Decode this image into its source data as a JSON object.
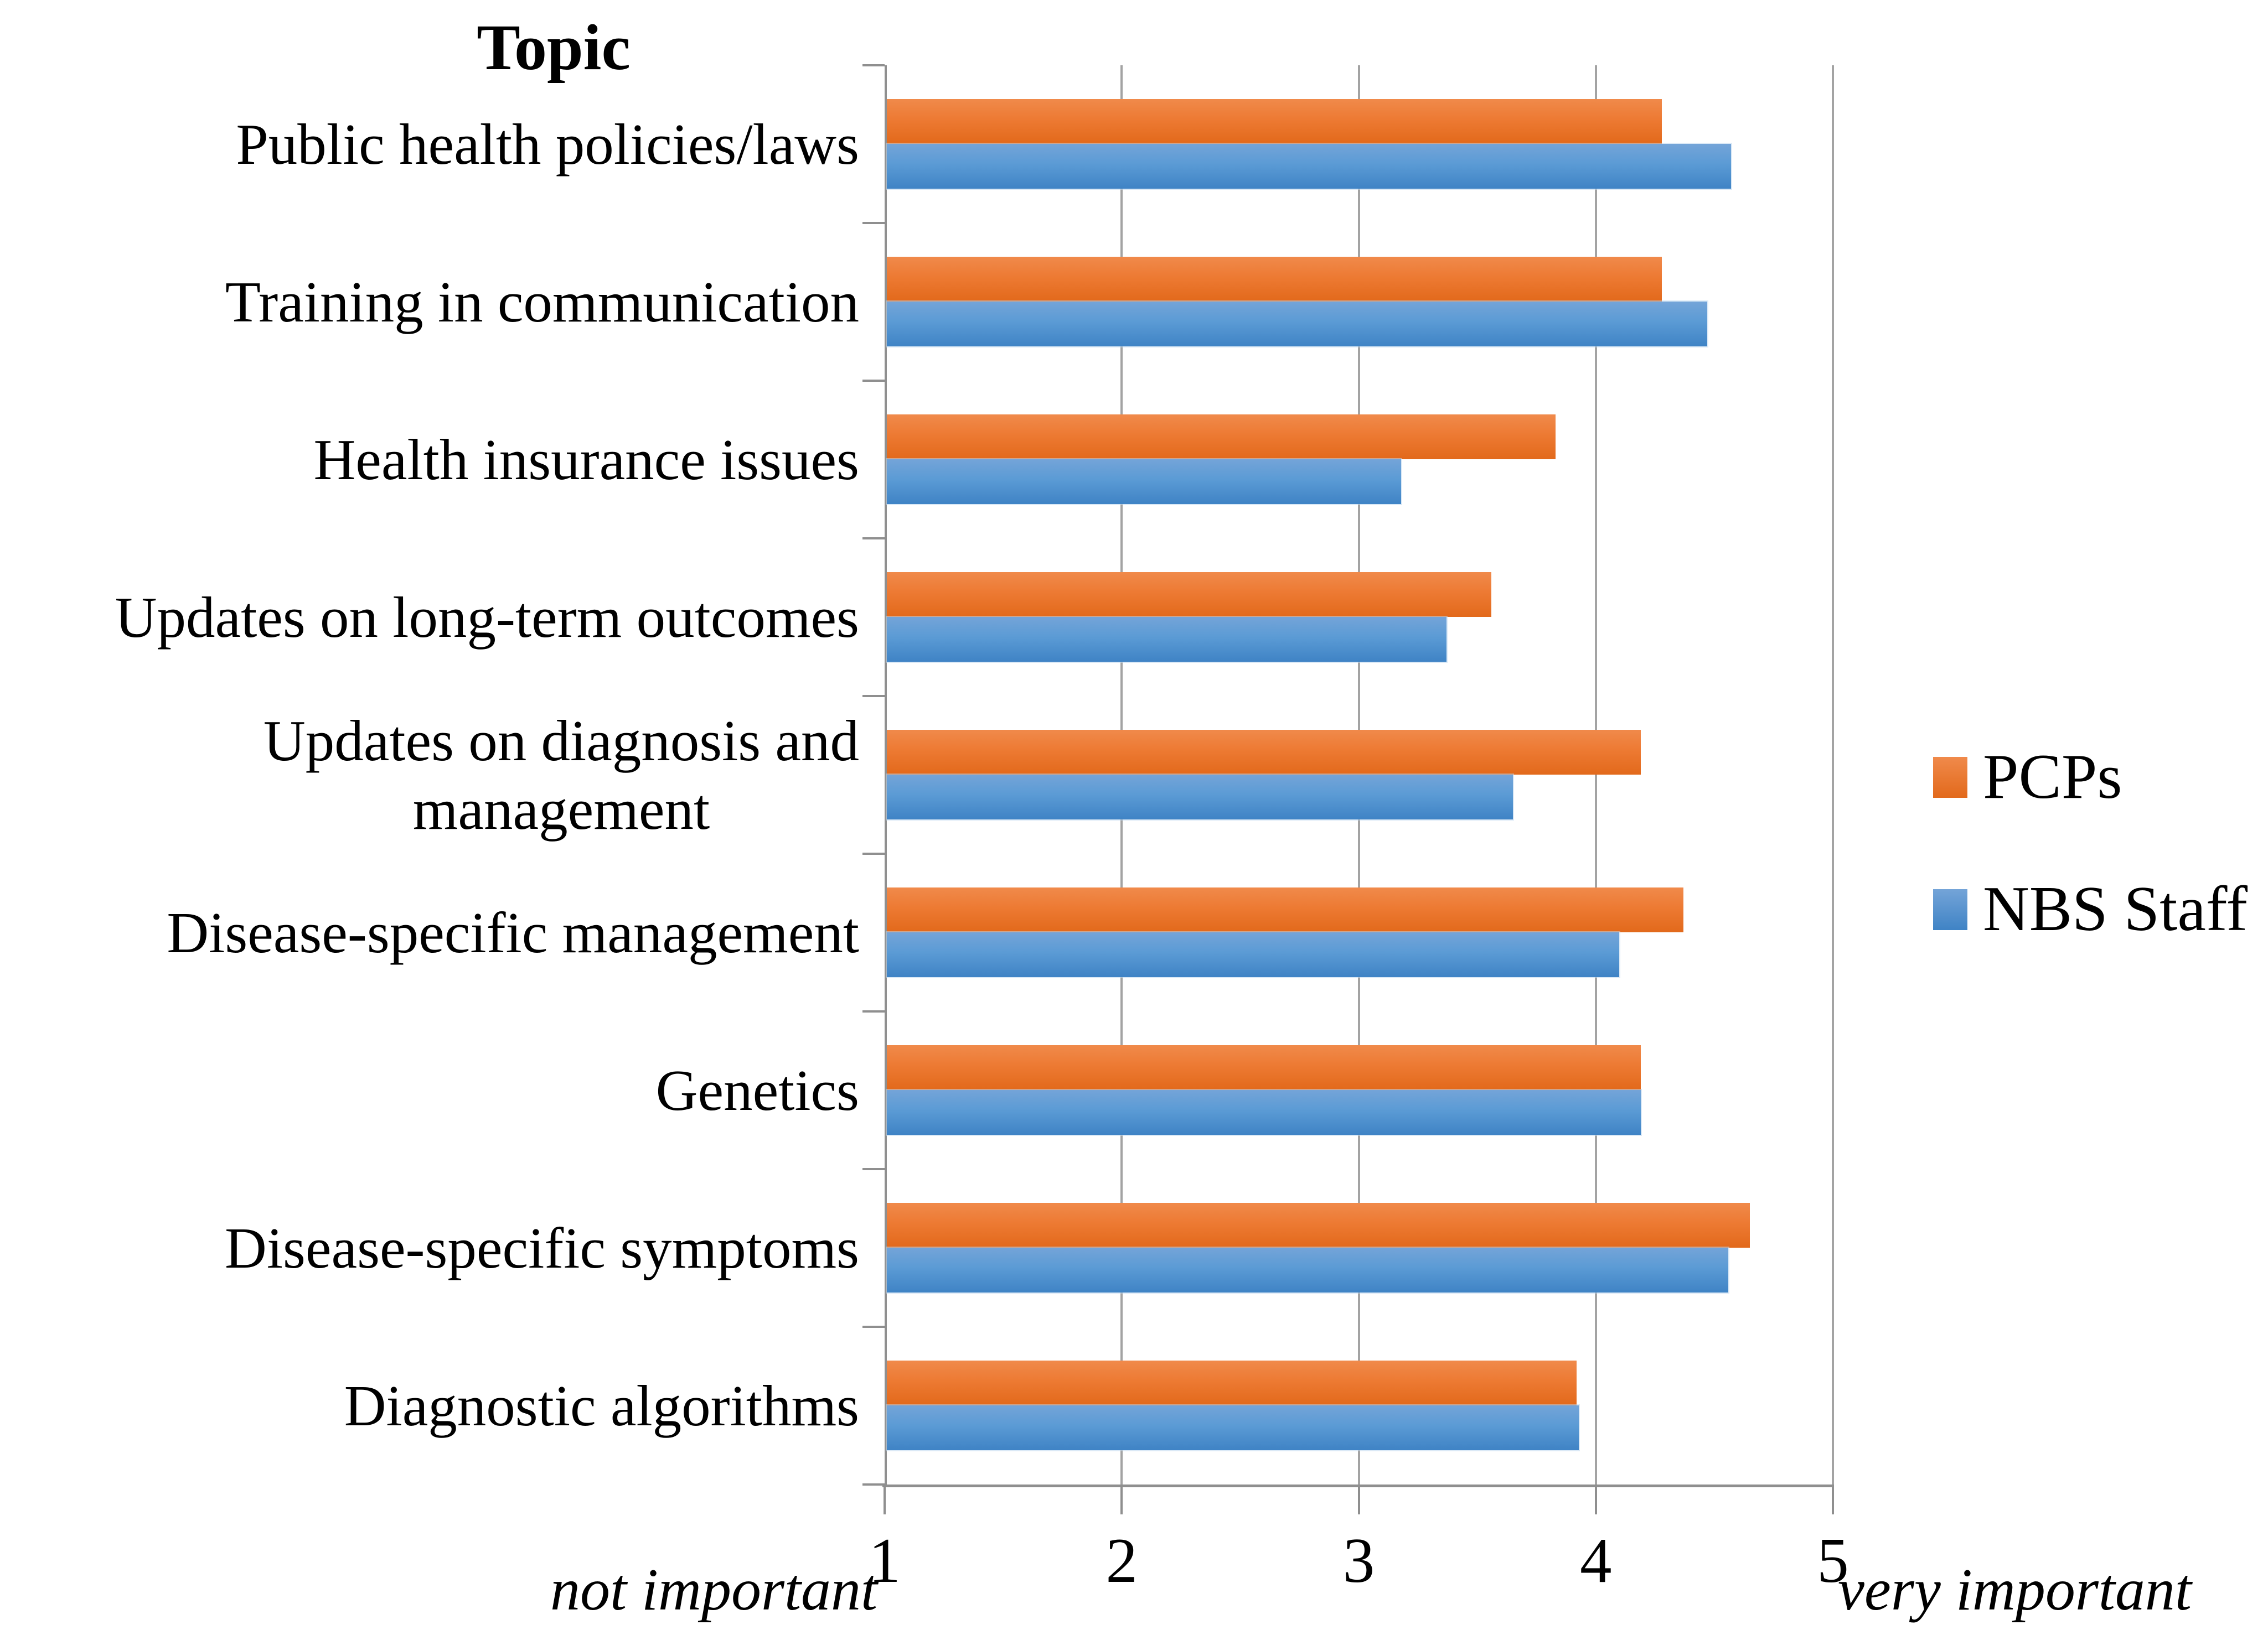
{
  "chart_data": {
    "type": "bar",
    "orientation": "horizontal",
    "title": "Topic",
    "categories": [
      "Public health policies/laws",
      "Training in communication",
      "Health insurance issues",
      "Updates on long-term outcomes",
      "Updates on diagnosis and\nmanagement",
      "Disease-specific management",
      "Genetics",
      "Disease-specific symptoms",
      "Diagnostic algorithms"
    ],
    "series": [
      {
        "name": "PCPs",
        "color": "#ED7A33",
        "values": [
          4.27,
          4.27,
          3.82,
          3.55,
          4.18,
          4.36,
          4.18,
          4.64,
          3.91
        ]
      },
      {
        "name": "NBS Staff",
        "color": "#5B9BD5",
        "values": [
          4.56,
          4.46,
          3.17,
          3.36,
          3.64,
          4.09,
          4.18,
          4.55,
          3.92
        ]
      }
    ],
    "xlabel": "",
    "ylabel": "Topic",
    "xlim": [
      1,
      5
    ],
    "xticks": [
      "1",
      "2",
      "3",
      "4",
      "5"
    ],
    "x_annotation_left": "not important",
    "x_annotation_right": "very important",
    "grid": true,
    "legend_position": "right"
  }
}
